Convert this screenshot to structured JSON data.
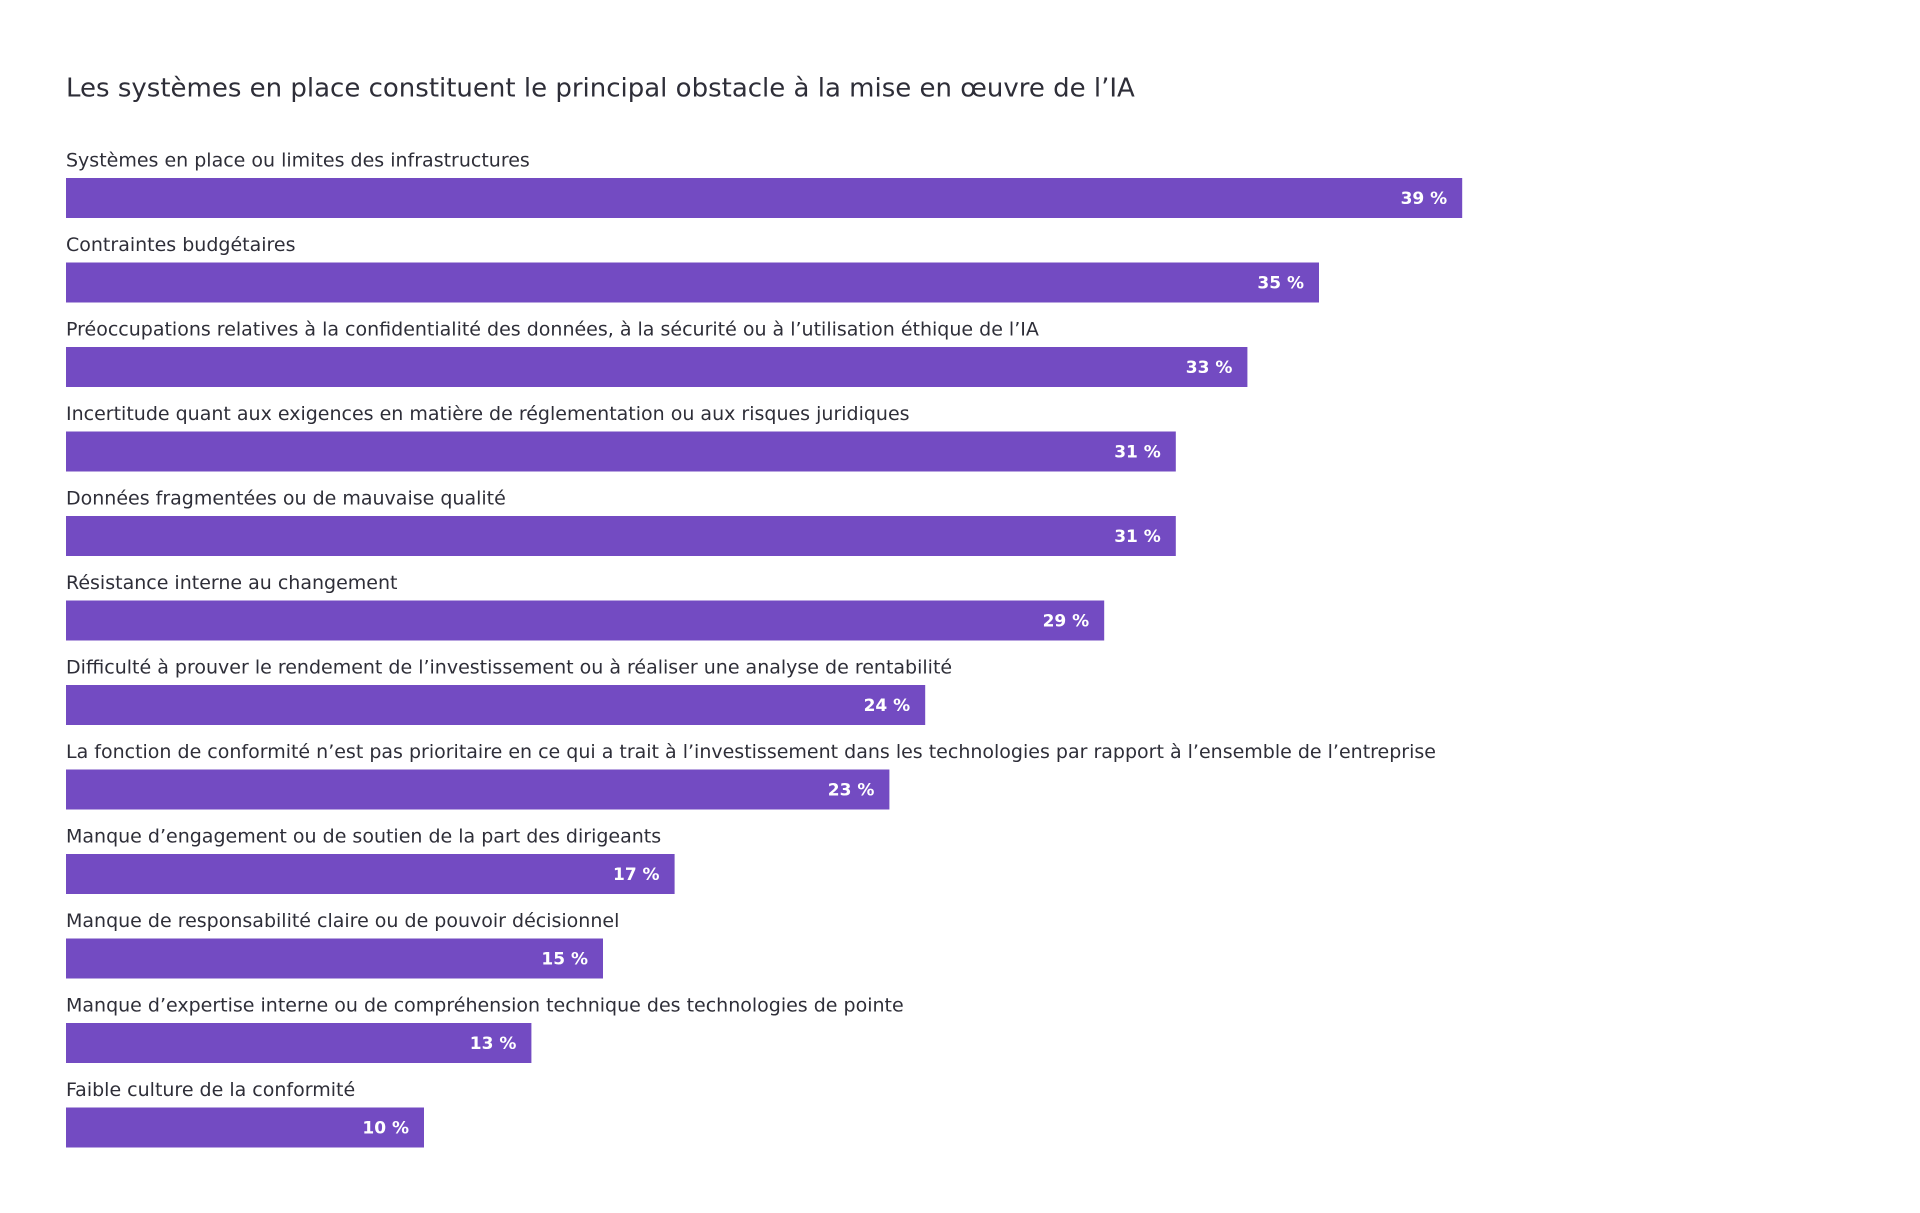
{
  "chart_data": {
    "type": "bar",
    "title": "Les systèmes en place constituent le principal obstacle à la mise en œuvre de l’IA",
    "categories": [
      "Systèmes en place ou limites des infrastructures",
      "Contraintes budgétaires",
      "Préoccupations relatives à la confidentialité des données, à la sécurité ou à l’utilisation éthique de l’IA",
      "Incertitude quant aux exigences en matière de réglementation ou aux risques juridiques",
      "Données fragmentées ou de mauvaise qualité",
      "Résistance interne au changement",
      "Difficulté à prouver le rendement de l’investissement ou à réaliser une analyse de rentabilité",
      "La fonction de conformité n’est pas prioritaire en ce qui a trait à l’investissement dans les technologies par rapport à l’ensemble de l’entreprise",
      "Manque d’engagement ou de soutien de la part des dirigeants",
      "Manque de responsabilité claire ou de pouvoir décisionnel",
      "Manque d’expertise interne ou de compréhension technique des technologies de pointe",
      "Faible culture de la conformité"
    ],
    "values": [
      39,
      35,
      33,
      31,
      31,
      29,
      24,
      23,
      17,
      15,
      13,
      10
    ],
    "value_labels": [
      "39 %",
      "35 %",
      "33 %",
      "31 %",
      "31 %",
      "29 %",
      "24 %",
      "23 %",
      "17 %",
      "15 %",
      "13 %",
      "10 %"
    ],
    "color": "#734bc2"
  }
}
